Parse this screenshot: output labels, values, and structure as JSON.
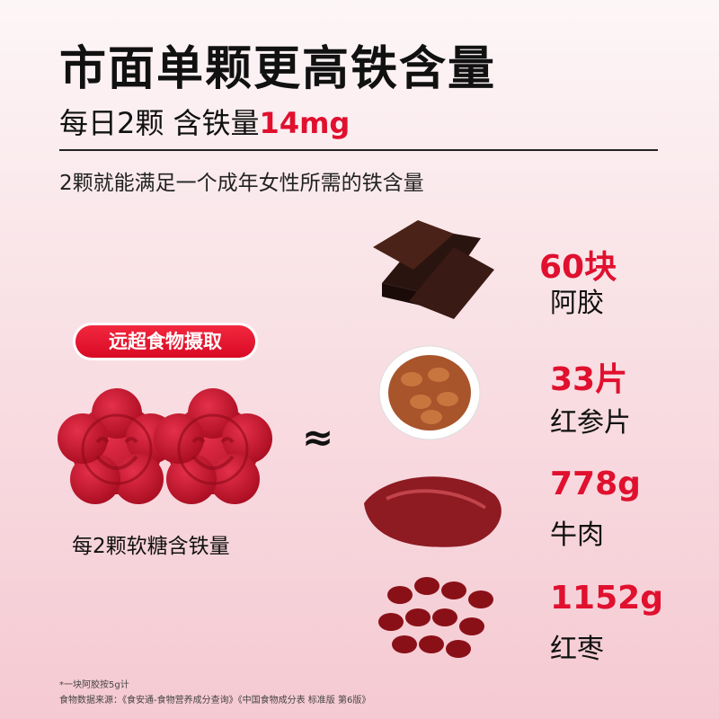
{
  "title": "市面单颗更高铁含量",
  "subtitle": {
    "prefix": "每日2颗  含铁量",
    "highlight": "14mg"
  },
  "description": "2颗就能满足一个成年女性所需的铁含量",
  "badge": "远超食物摄取",
  "gummy_caption": "每2颗软糖含铁量",
  "approx_symbol": "≈",
  "colors": {
    "accent": "#e0102e",
    "gummy": "#c8182e"
  },
  "foods": [
    {
      "value": "60块",
      "name": "阿胶",
      "icon": "ejiao-bars-image"
    },
    {
      "value": "33片",
      "name": "红参片",
      "icon": "red-ginseng-slices-image"
    },
    {
      "value": "778g",
      "name": "牛肉",
      "icon": "beef-image"
    },
    {
      "value": "1152g",
      "name": "红枣",
      "icon": "red-dates-image"
    }
  ],
  "footnotes": [
    "*一块阿胶按5g计",
    "食物数据来源：《食安通-食物营养成分查询》《中国食物成分表 标准版 第6版》"
  ]
}
